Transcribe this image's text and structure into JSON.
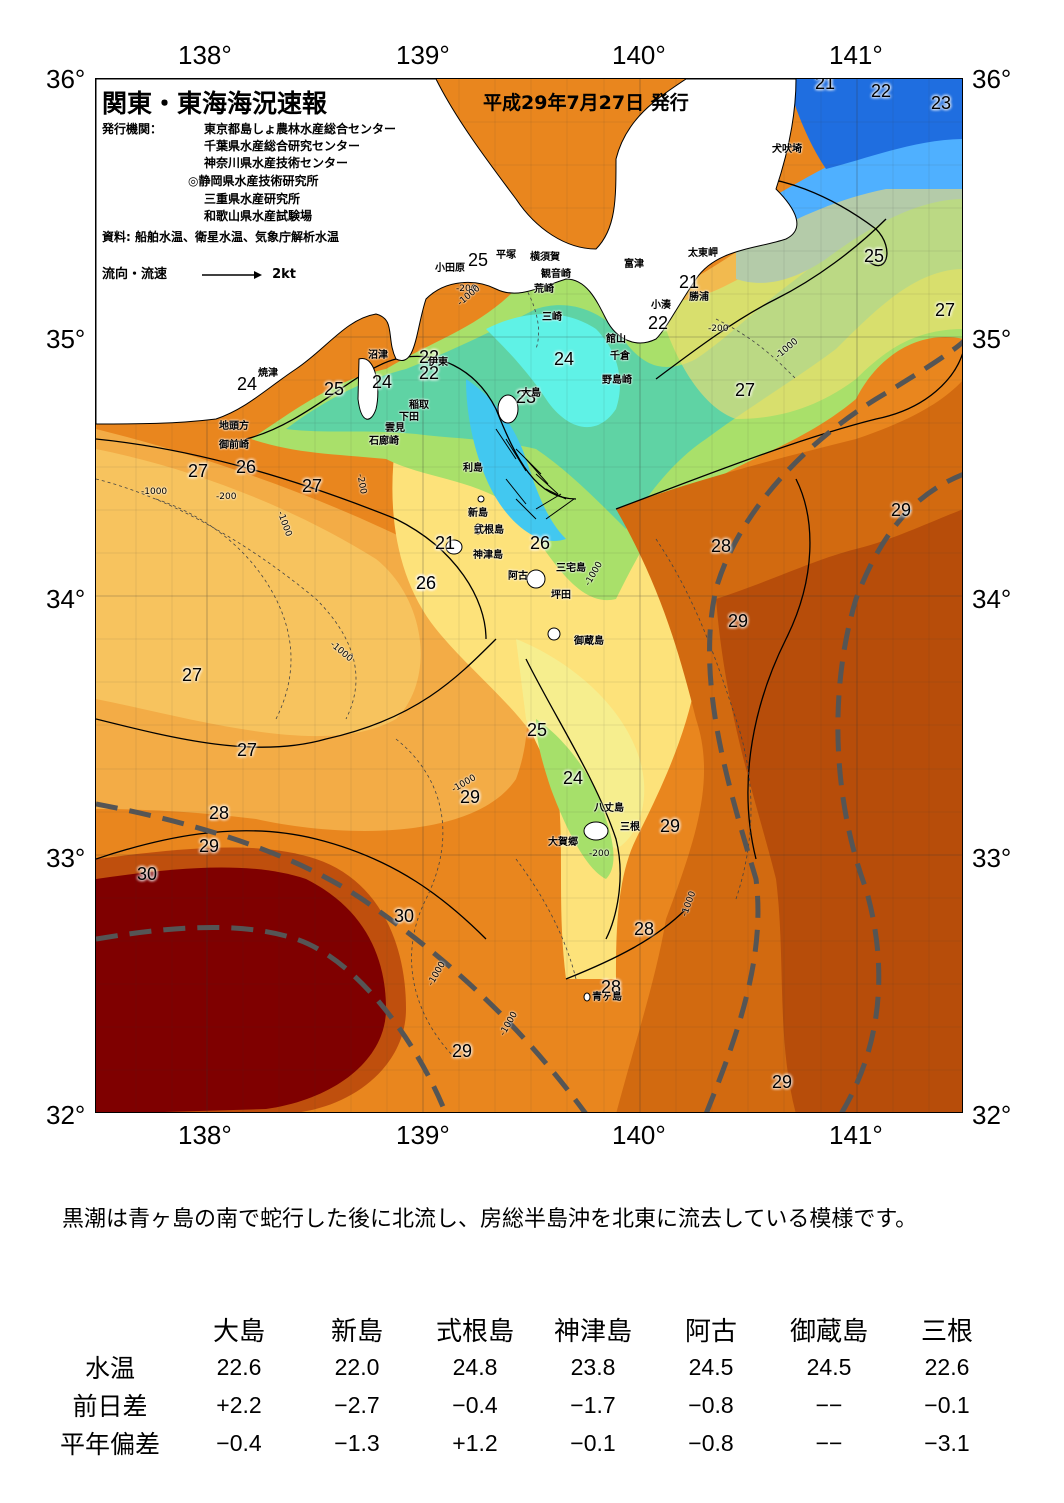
{
  "header": {
    "title": "関東・東海海況速報",
    "date": "平成29年7月27日 発行",
    "agency_label": "発行機関：",
    "agencies": [
      "東京都島しょ農林水産総合センター",
      "千葉県水産総合研究センター",
      "神奈川県水産技術センター",
      "◎静岡県水産技術研究所",
      "三重県水産研究所",
      "和歌山県水産試験場"
    ],
    "source": "資料: 船舶水温、衛星水温、気象庁解析水温",
    "flow_label": "流向・流速",
    "flow_scale": "2kt"
  },
  "axes": {
    "lon_top": [
      "138°",
      "139°",
      "140°",
      "141°"
    ],
    "lon_bottom": [
      "138°",
      "139°",
      "140°",
      "141°"
    ],
    "lat_left": [
      "36°",
      "35°",
      "34°",
      "33°",
      "32°"
    ],
    "lat_right": [
      "36°",
      "35°",
      "34°",
      "33°",
      "32°"
    ]
  },
  "isotherm_labels": [
    "21",
    "22",
    "23",
    "25",
    "21",
    "22",
    "25",
    "27",
    "24",
    "25",
    "24",
    "22",
    "22",
    "24",
    "23",
    "27",
    "27",
    "26",
    "27",
    "26",
    "26",
    "21",
    "28",
    "29",
    "26",
    "27",
    "27",
    "25",
    "24",
    "28",
    "29",
    "29",
    "29",
    "30",
    "30",
    "28",
    "28",
    "29",
    "29",
    "29"
  ],
  "depth_labels": [
    "-200",
    "-1000",
    "-1000",
    "-200",
    "-1000",
    "-200",
    "-1000",
    "-1000",
    "-1000",
    "-200",
    "-1000",
    "-1000",
    "-1000",
    "-1000",
    "-200"
  ],
  "places": [
    "犬吠埼",
    "太東岬",
    "勝浦",
    "小湊",
    "館山",
    "千倉",
    "野島崎",
    "富津",
    "観音崎",
    "荒崎",
    "三崎",
    "横須賀",
    "平塚",
    "小田原",
    "伊東",
    "稲取",
    "下田",
    "雲見",
    "石廊崎",
    "沼津",
    "焼津",
    "地頭方",
    "御前崎",
    "大島",
    "利島",
    "新島",
    "式根島",
    "神津島",
    "阿古",
    "坪田",
    "三宅島",
    "御蔵島",
    "八丈島",
    "三根",
    "大賀郷",
    "青ヶ島"
  ],
  "description": "黒潮は青ヶ島の南で蛇行した後に北流し、房総半島沖を北東に流去している模様です。",
  "table": {
    "columns": [
      "大島",
      "新島",
      "式根島",
      "神津島",
      "阿古",
      "御蔵島",
      "三根"
    ],
    "rows": [
      {
        "label": "水温",
        "values": [
          "22.6",
          "22.0",
          "24.8",
          "23.8",
          "24.5",
          "24.5",
          "22.6"
        ]
      },
      {
        "label": "前日差",
        "values": [
          "+2.2",
          "−2.7",
          "−0.4",
          "−1.7",
          "−0.8",
          "−−",
          "−0.1"
        ]
      },
      {
        "label": "平年偏差",
        "values": [
          "−0.4",
          "−1.3",
          "+1.2",
          "−0.1",
          "−0.8",
          "−−",
          "−3.1"
        ]
      }
    ]
  },
  "colors": {
    "kuroshio_axis": "#555555",
    "land": "#ffffff",
    "sea_cold": "#1e6fd9",
    "sea_hot": "#7a0000"
  }
}
